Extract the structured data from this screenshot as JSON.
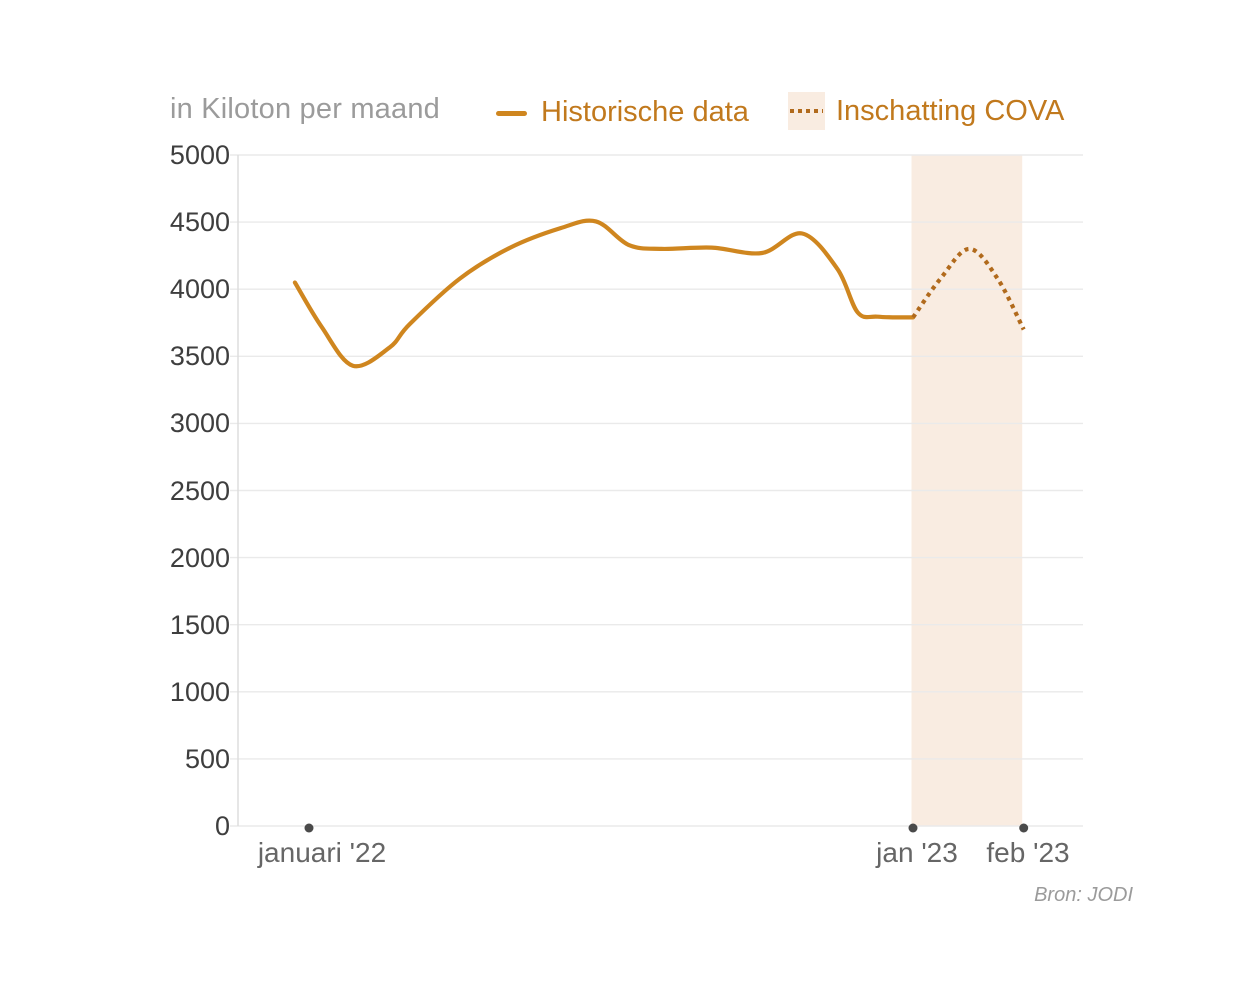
{
  "header": {
    "title": "in Kiloton per maand",
    "legend": [
      {
        "label": "Historische data",
        "swatch": "solid-line",
        "color": "#cf861f"
      },
      {
        "label": "Inschatting COVA",
        "swatch": "dotted-line-on-band",
        "color": "#b16a1c",
        "band_color": "#f9ece1"
      }
    ]
  },
  "footer": {
    "source": "Bron: JODI"
  },
  "colors": {
    "grid": "#eaeaea",
    "axis_line": "#dcdcdc",
    "axis_dot": "#4a4a4a",
    "band": "#f9ece1",
    "historical_line": "#cf861f",
    "estimate_line": "#b16a1c"
  },
  "chart_data": {
    "type": "line",
    "title": "in Kiloton per maand",
    "ylabel": "Kiloton per maand",
    "ylim": [
      0,
      5000
    ],
    "ytick_step": 500,
    "ytick_labels": [
      "0",
      "500",
      "1000",
      "1500",
      "2000",
      "2500",
      "3000",
      "3500",
      "4000",
      "4500",
      "5000"
    ],
    "grid": "horizontal",
    "legend_position": "top",
    "x_ticks": [
      {
        "label": "januari '22",
        "i": 0
      },
      {
        "label": "jan '23",
        "i": 12
      },
      {
        "label": "feb '23",
        "i": 14.2
      }
    ],
    "forecast_band": {
      "from_i": 11.97,
      "to_i": 14.17
    },
    "series": [
      {
        "name": "Historische data",
        "style": "solid",
        "color": "#cf861f",
        "monthly_values": {
          "jan '22": 4050,
          "feb '22": 3430,
          "mrt '22": 3740,
          "apr '22": 4080,
          "mei '22": 4310,
          "jun '22": 4460,
          "jul '22": 4500,
          "aug '22": 4300,
          "sep '22": 4310,
          "okt '22": 4270,
          "nov '22": 4420,
          "dec '22": 3820,
          "jan '23": 3790
        },
        "points": [
          [
            -0.28,
            4050
          ],
          [
            0.25,
            3720
          ],
          [
            0.87,
            3430
          ],
          [
            1.6,
            3565
          ],
          [
            2,
            3740
          ],
          [
            3,
            4080
          ],
          [
            4,
            4310
          ],
          [
            5,
            4455
          ],
          [
            5.7,
            4505
          ],
          [
            6.35,
            4330
          ],
          [
            7,
            4300
          ],
          [
            8,
            4310
          ],
          [
            9,
            4270
          ],
          [
            9.8,
            4415
          ],
          [
            10.5,
            4150
          ],
          [
            10.9,
            3828
          ],
          [
            11.3,
            3795
          ],
          [
            12,
            3790
          ]
        ]
      },
      {
        "name": "Inschatting COVA",
        "style": "dotted",
        "color": "#b16a1c",
        "monthly_values": {
          "jan '23": 3790,
          "piek medio jan '23": 4300,
          "feb '23": 3700
        },
        "points": [
          [
            12,
            3790
          ],
          [
            12.55,
            4080
          ],
          [
            13.12,
            4300
          ],
          [
            13.68,
            4080
          ],
          [
            14.2,
            3700
          ]
        ]
      }
    ],
    "source": "Bron: JODI"
  }
}
